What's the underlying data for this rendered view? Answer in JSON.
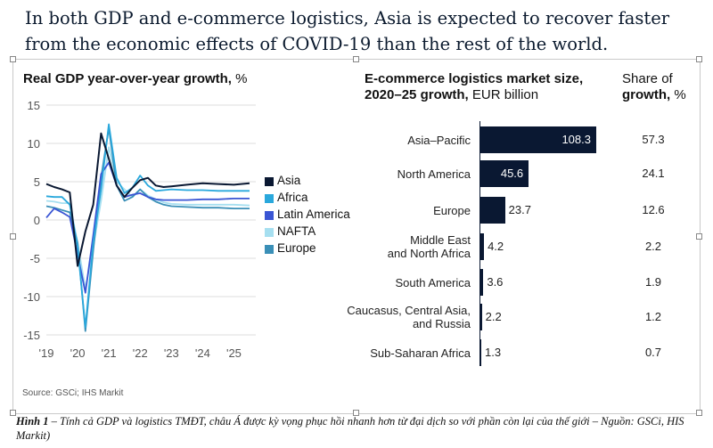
{
  "title": "In both GDP and e-commerce logistics, Asia is expected to recover faster from the economic effects of COVID-19 than the rest of the world.",
  "gdp_chart": {
    "title_bold": "Real GDP year-over-year growth,",
    "title_unit": " %",
    "source": "Source: GSCi; IHS Markit"
  },
  "bar_chart": {
    "title_bold_line1": "E-commerce logistics market size,",
    "title_bold_line2": "2020–25 growth,",
    "title_unit": " EUR billion",
    "share_title_line1": "Share of",
    "share_title_bold": "growth,",
    "share_title_unit": " %"
  },
  "caption": {
    "label": "Hình 1",
    "text": " – Tính cả GDP và logistics TMĐT, châu Á được kỳ vọng phục hồi nhanh hơn từ đại dịch so với phần còn lại của thế giới – Nguồn: GSCi, HIS Markit)"
  },
  "colors": {
    "navy": "#0a1832",
    "asia": "#0a1832",
    "africa": "#2aa8dc",
    "latin_america": "#3a55d4",
    "nafta": "#a6dff0",
    "europe": "#3a8fb7"
  },
  "chart_data": [
    {
      "type": "line",
      "title": "Real GDP year-over-year growth, %",
      "ylabel": "%",
      "ylim": [
        -15,
        15
      ],
      "yticks": [
        15,
        10,
        5,
        0,
        -5,
        -10,
        -15
      ],
      "xticks": [
        "'19",
        "'20",
        "'21",
        "'22",
        "'23",
        "'24",
        "'25"
      ],
      "x": [
        2019.0,
        2019.25,
        2019.5,
        2019.75,
        2020.0,
        2020.25,
        2020.5,
        2020.75,
        2021.0,
        2021.25,
        2021.5,
        2021.75,
        2022.0,
        2022.25,
        2022.5,
        2022.75,
        2023.0,
        2023.5,
        2024.0,
        2024.5,
        2025.0,
        2025.5
      ],
      "series": [
        {
          "name": "Asia",
          "color": "#0a1832",
          "values": [
            4.7,
            4.3,
            4.0,
            3.6,
            -6.0,
            -1.5,
            2.0,
            11.3,
            8.0,
            4.5,
            3.0,
            4.2,
            5.2,
            5.5,
            4.5,
            4.3,
            4.4,
            4.6,
            4.8,
            4.7,
            4.6,
            4.8
          ]
        },
        {
          "name": "Africa",
          "color": "#2aa8dc",
          "values": [
            3.1,
            3.0,
            3.0,
            2.0,
            -3.5,
            -14.0,
            -3.0,
            4.0,
            12.5,
            5.5,
            3.5,
            4.2,
            5.8,
            4.5,
            3.8,
            3.9,
            4.0,
            3.9,
            3.9,
            3.8,
            3.8,
            3.8
          ]
        },
        {
          "name": "Latin America",
          "color": "#3a55d4",
          "values": [
            0.3,
            1.5,
            1.0,
            0.4,
            -4.5,
            -9.5,
            -2.0,
            6.0,
            7.5,
            4.5,
            3.0,
            3.3,
            3.5,
            3.0,
            2.7,
            2.6,
            2.6,
            2.6,
            2.7,
            2.7,
            2.8,
            2.8
          ]
        },
        {
          "name": "NAFTA",
          "color": "#a6dff0",
          "values": [
            2.5,
            2.4,
            2.2,
            2.2,
            -3.0,
            -9.0,
            -3.5,
            2.5,
            9.5,
            5.0,
            4.0,
            3.0,
            4.0,
            3.2,
            2.7,
            2.3,
            2.1,
            2.0,
            2.0,
            2.0,
            2.0,
            1.9
          ]
        },
        {
          "name": "Europe",
          "color": "#3a8fb7",
          "values": [
            1.8,
            1.6,
            1.3,
            1.0,
            -3.0,
            -14.5,
            -4.0,
            5.5,
            12.0,
            4.5,
            2.5,
            3.0,
            4.0,
            3.0,
            2.4,
            2.0,
            1.8,
            1.7,
            1.6,
            1.6,
            1.5,
            1.5
          ]
        }
      ],
      "legend": "right"
    },
    {
      "type": "bar",
      "orientation": "horizontal",
      "title": "E-commerce logistics market size, 2020–25 growth, EUR billion",
      "categories": [
        [
          "Asia–Pacific"
        ],
        [
          "North America"
        ],
        [
          "Europe"
        ],
        [
          "Middle East",
          "and North Africa"
        ],
        [
          "South America"
        ],
        [
          "Caucasus, Central Asia,",
          "and Russia"
        ],
        [
          "Sub-Saharan Africa"
        ]
      ],
      "values": [
        108.3,
        45.6,
        23.7,
        4.2,
        3.6,
        2.2,
        1.3
      ],
      "value_labels": [
        "108.3",
        "45.6",
        "23.7",
        "4.2",
        "3.6",
        "2.2",
        "1.3"
      ],
      "share_title": "Share of growth, %",
      "share_of_growth": [
        "57.3",
        "24.1",
        "12.6",
        "2.2",
        "1.9",
        "1.2",
        "0.7"
      ]
    }
  ]
}
